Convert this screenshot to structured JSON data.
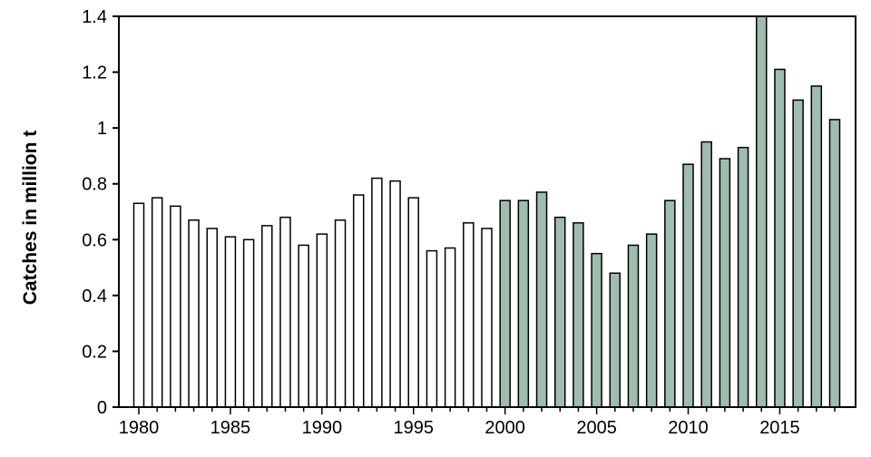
{
  "chart_data": {
    "type": "bar",
    "ylabel": "Catches in million t",
    "xlabel": "",
    "ylim": [
      0,
      1.4
    ],
    "yticks": [
      "0",
      "0.2",
      "0.4",
      "0.6",
      "0.8",
      "1",
      "1.2",
      "1.4"
    ],
    "xticks": [
      "1980",
      "1985",
      "1990",
      "1995",
      "2000",
      "2005",
      "2010",
      "2015"
    ],
    "grid": false,
    "colors": {
      "open_bar_fill": "#ffffff",
      "filled_bar_fill": "#9fbcaf",
      "bar_stroke": "#000000"
    },
    "series": [
      {
        "style": "open",
        "x": [
          1980,
          1981,
          1982,
          1983,
          1984,
          1985,
          1986,
          1987,
          1988,
          1989,
          1990,
          1991,
          1992,
          1993,
          1994,
          1995,
          1996,
          1997,
          1998,
          1999
        ],
        "values": [
          0.73,
          0.75,
          0.72,
          0.67,
          0.64,
          0.61,
          0.6,
          0.65,
          0.68,
          0.58,
          0.62,
          0.67,
          0.76,
          0.82,
          0.81,
          0.75,
          0.56,
          0.57,
          0.66,
          0.64
        ]
      },
      {
        "style": "filled",
        "x": [
          2000,
          2001,
          2002,
          2003,
          2004,
          2005,
          2006,
          2007,
          2008,
          2009,
          2010,
          2011,
          2012,
          2013,
          2014,
          2015,
          2016,
          2017,
          2018
        ],
        "values": [
          0.74,
          0.74,
          0.77,
          0.68,
          0.66,
          0.55,
          0.48,
          0.58,
          0.62,
          0.74,
          0.87,
          0.95,
          0.89,
          0.93,
          1.4,
          1.21,
          1.1,
          1.15,
          1.03
        ]
      }
    ]
  }
}
